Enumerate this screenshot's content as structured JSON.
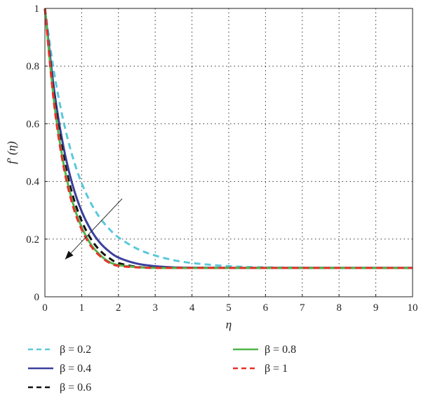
{
  "chart_data": {
    "type": "line",
    "title": "",
    "xlabel": "η",
    "ylabel": "f′ (η)",
    "xlim": [
      0,
      10
    ],
    "ylim": [
      0,
      1
    ],
    "xticks": [
      "0",
      "1",
      "2",
      "3",
      "4",
      "5",
      "6",
      "7",
      "8",
      "9",
      "10"
    ],
    "yticks": [
      "0",
      "0.2",
      "0.4",
      "0.6",
      "0.8",
      "1"
    ],
    "grid": true,
    "legend_position": "bottom",
    "x": [
      0,
      0.25,
      0.5,
      0.75,
      1,
      1.25,
      1.5,
      1.75,
      2,
      2.5,
      3,
      3.5,
      4,
      5,
      6,
      7,
      8,
      9,
      10
    ],
    "series": [
      {
        "name": "β = 0.2",
        "color": "#5bc8dc",
        "dash": "dashed",
        "values": [
          1,
          0.778,
          0.612,
          0.487,
          0.394,
          0.325,
          0.273,
          0.235,
          0.206,
          0.167,
          0.143,
          0.127,
          0.117,
          0.106,
          0.102,
          0.101,
          0.1,
          0.1,
          0.1
        ]
      },
      {
        "name": "β = 0.4",
        "color": "#3b3f9e",
        "dash": "solid",
        "values": [
          1,
          0.718,
          0.523,
          0.389,
          0.296,
          0.232,
          0.187,
          0.157,
          0.136,
          0.115,
          0.106,
          0.102,
          0.101,
          0.1,
          0.1,
          0.1,
          0.1,
          0.1,
          0.1
        ]
      },
      {
        "name": "β = 0.6",
        "color": "#111111",
        "dash": "dashed",
        "values": [
          1,
          0.696,
          0.492,
          0.355,
          0.263,
          0.201,
          0.16,
          0.134,
          0.117,
          0.104,
          0.101,
          0.1,
          0.1,
          0.1,
          0.1,
          0.1,
          0.1,
          0.1,
          0.1
        ]
      },
      {
        "name": "β = 0.8",
        "color": "#4fb64a",
        "dash": "solid",
        "values": [
          1,
          0.677,
          0.467,
          0.33,
          0.241,
          0.182,
          0.145,
          0.121,
          0.11,
          0.103,
          0.1,
          0.1,
          0.1,
          0.1,
          0.1,
          0.1,
          0.1,
          0.1,
          0.1
        ]
      },
      {
        "name": "β = 1",
        "color": "#e8302a",
        "dash": "dashed",
        "values": [
          1,
          0.668,
          0.456,
          0.32,
          0.233,
          0.176,
          0.141,
          0.118,
          0.107,
          0.102,
          0.1,
          0.1,
          0.1,
          0.1,
          0.1,
          0.1,
          0.1,
          0.1,
          0.1
        ]
      }
    ],
    "annotation": {
      "type": "arrow",
      "from": [
        2.1,
        0.34
      ],
      "to": [
        0.55,
        0.13
      ]
    }
  }
}
